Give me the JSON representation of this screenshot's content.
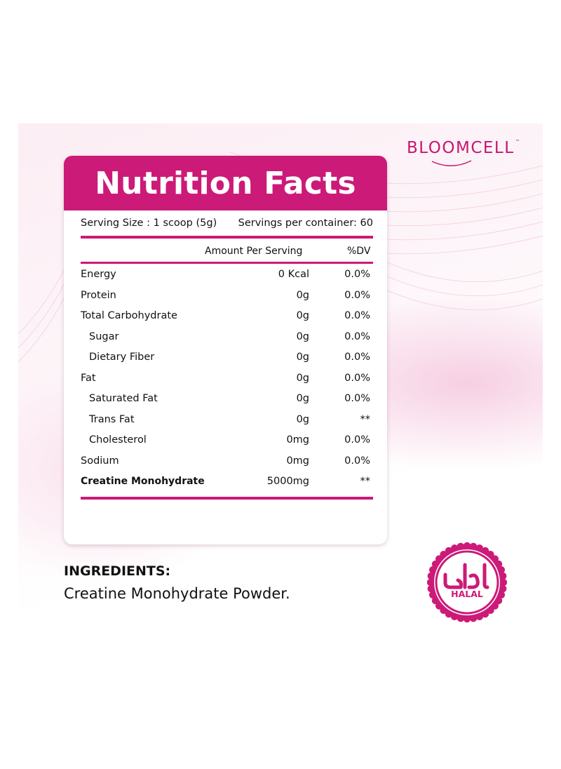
{
  "brand": {
    "name": "BLOOMCELL",
    "tm": "™"
  },
  "label": {
    "title": "Nutrition Facts",
    "serving_size": "Serving Size : 1 scoop (5g)",
    "servings_per_container": "Servings per container: 60",
    "col_amount": "Amount Per Serving",
    "col_dv": "%DV",
    "rows": [
      {
        "name": "Energy",
        "amount": "0 Kcal",
        "dv": "0.0%"
      },
      {
        "name": "Protein",
        "amount": "0g",
        "dv": "0.0%"
      },
      {
        "name": "Total Carbohydrate",
        "amount": "0g",
        "dv": "0.0%"
      },
      {
        "name": "Sugar",
        "amount": "0g",
        "dv": "0.0%"
      },
      {
        "name": "Dietary Fiber",
        "amount": "0g",
        "dv": "0.0%"
      },
      {
        "name": "Fat",
        "amount": "0g",
        "dv": "0.0%"
      },
      {
        "name": "Saturated Fat",
        "amount": "0g",
        "dv": "0.0%"
      },
      {
        "name": "Trans Fat",
        "amount": "0g",
        "dv": "**"
      },
      {
        "name": "Cholesterol",
        "amount": "0mg",
        "dv": "0.0%"
      },
      {
        "name": "Sodium",
        "amount": "0mg",
        "dv": "0.0%"
      },
      {
        "name": "Creatine Monohydrate",
        "amount": "5000mg",
        "dv": "**"
      }
    ]
  },
  "ingredients": {
    "title": "INGREDIENTS:",
    "text": "Creatine Monohydrate Powder."
  },
  "halal": {
    "label": "HALAL",
    "arabic": "حلال"
  },
  "colors": {
    "accent": "#cc1a78",
    "brand": "#c8156f"
  }
}
